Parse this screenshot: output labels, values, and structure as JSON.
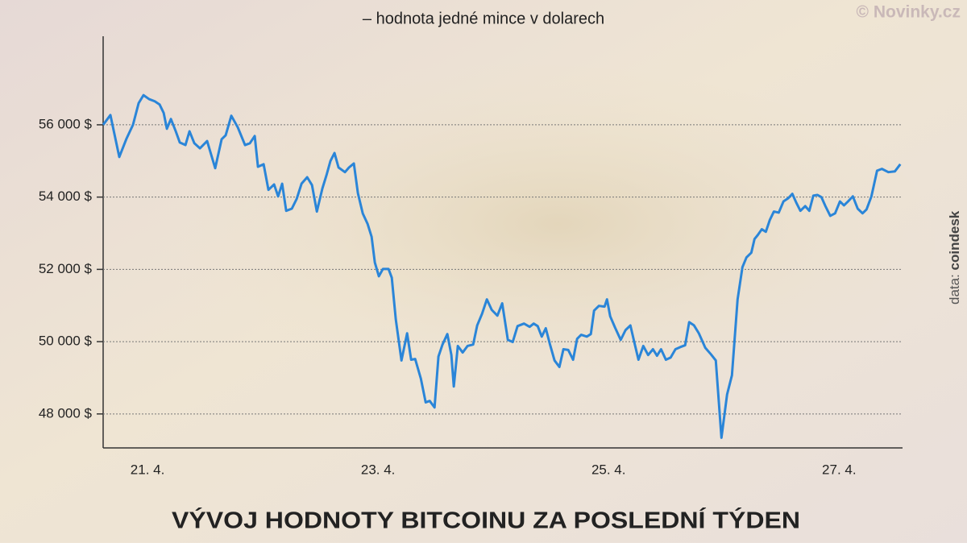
{
  "chart_data": {
    "type": "line",
    "title": "VÝVOJ HODNOTY BITCOINU ZA POSLEDNÍ TÝDEN",
    "subtitle": "– hodnota jedné mince v dolarech",
    "watermark": "© Novinky.cz",
    "source_label": "data:",
    "source_name": "coindesk",
    "color": "#2a85d8",
    "grid": true,
    "xlim": [
      20.615,
      27.55
    ],
    "ylim": [
      47060,
      58450
    ],
    "xticks": [
      {
        "value": 21,
        "label": "21. 4."
      },
      {
        "value": 23,
        "label": "23. 4."
      },
      {
        "value": 25,
        "label": "25. 4."
      },
      {
        "value": 27,
        "label": "27. 4."
      }
    ],
    "yticks": [
      {
        "value": 48000,
        "label": "48 000 $"
      },
      {
        "value": 50000,
        "label": "50 000 $"
      },
      {
        "value": 52000,
        "label": "52 000 $"
      },
      {
        "value": 54000,
        "label": "54 000 $"
      },
      {
        "value": 56000,
        "label": "56 000 $"
      }
    ],
    "x": [
      20.615,
      20.678,
      20.755,
      20.818,
      20.874,
      20.923,
      20.965,
      21.014,
      21.063,
      21.105,
      21.14,
      21.168,
      21.203,
      21.245,
      21.28,
      21.329,
      21.364,
      21.406,
      21.455,
      21.517,
      21.587,
      21.643,
      21.678,
      21.727,
      21.783,
      21.846,
      21.888,
      21.93,
      21.958,
      22.007,
      22.049,
      22.098,
      22.133,
      22.168,
      22.203,
      22.252,
      22.294,
      22.336,
      22.385,
      22.427,
      22.469,
      22.517,
      22.552,
      22.587,
      22.622,
      22.657,
      22.713,
      22.748,
      22.79,
      22.825,
      22.867,
      22.909,
      22.944,
      22.972,
      23.007,
      23.042,
      23.091,
      23.119,
      23.154,
      23.203,
      23.252,
      23.287,
      23.322,
      23.371,
      23.413,
      23.448,
      23.49,
      23.524,
      23.559,
      23.601,
      23.636,
      23.657,
      23.692,
      23.734,
      23.776,
      23.825,
      23.86,
      23.902,
      23.944,
      23.986,
      24.035,
      24.077,
      24.126,
      24.168,
      24.21,
      24.266,
      24.315,
      24.35,
      24.385,
      24.42,
      24.455,
      24.49,
      24.531,
      24.573,
      24.608,
      24.65,
      24.692,
      24.727,
      24.762,
      24.811,
      24.846,
      24.874,
      24.916,
      24.965,
      24.986,
      25.014,
      25.056,
      25.105,
      25.147,
      25.189,
      25.224,
      25.259,
      25.301,
      25.343,
      25.385,
      25.42,
      25.455,
      25.497,
      25.538,
      25.58,
      25.622,
      25.664,
      25.699,
      25.741,
      25.783,
      25.839,
      25.888,
      25.93,
      25.979,
      26.028,
      26.07,
      26.119,
      26.161,
      26.196,
      26.238,
      26.266,
      26.294,
      26.329,
      26.364,
      26.399,
      26.434,
      26.476,
      26.517,
      26.559,
      26.594,
      26.629,
      26.664,
      26.706,
      26.741,
      26.776,
      26.811,
      26.846,
      26.881,
      26.923,
      26.965,
      27.007,
      27.042,
      27.077,
      27.119,
      27.161,
      27.203,
      27.238,
      27.28,
      27.329,
      27.371,
      27.427,
      27.483,
      27.531
    ],
    "values": [
      56000,
      56270,
      55110,
      55620,
      56000,
      56600,
      56820,
      56710,
      56650,
      56560,
      56330,
      55890,
      56160,
      55820,
      55510,
      55440,
      55820,
      55490,
      55350,
      55550,
      54800,
      55600,
      55710,
      56250,
      55930,
      55440,
      55490,
      55690,
      54840,
      54910,
      54200,
      54350,
      54020,
      54370,
      53620,
      53680,
      53950,
      54370,
      54550,
      54330,
      53600,
      54240,
      54600,
      55000,
      55220,
      54820,
      54690,
      54820,
      54930,
      54110,
      53550,
      53260,
      52900,
      52190,
      51810,
      52010,
      52010,
      51770,
      50610,
      49480,
      50230,
      49500,
      49520,
      48980,
      48320,
      48360,
      48180,
      49590,
      49920,
      50210,
      49630,
      48760,
      49880,
      49700,
      49880,
      49920,
      50450,
      50770,
      51170,
      50880,
      50720,
      51060,
      50050,
      49990,
      50430,
      50500,
      50410,
      50500,
      50430,
      50140,
      50370,
      49940,
      49480,
      49300,
      49790,
      49770,
      49500,
      50080,
      50190,
      50140,
      50210,
      50860,
      50990,
      50970,
      51170,
      50700,
      50390,
      50050,
      50320,
      50450,
      49970,
      49500,
      49880,
      49630,
      49790,
      49610,
      49790,
      49500,
      49560,
      49790,
      49850,
      49900,
      50540,
      50450,
      50230,
      49830,
      49650,
      49480,
      47340,
      48540,
      49070,
      51170,
      52060,
      52330,
      52460,
      52840,
      52950,
      53110,
      53040,
      53370,
      53600,
      53570,
      53880,
      53970,
      54090,
      53840,
      53620,
      53750,
      53620,
      54040,
      54060,
      54000,
      53750,
      53480,
      53550,
      53880,
      53770,
      53880,
      54020,
      53680,
      53550,
      53660,
      54020,
      54730,
      54780,
      54690,
      54710,
      54910
    ]
  }
}
